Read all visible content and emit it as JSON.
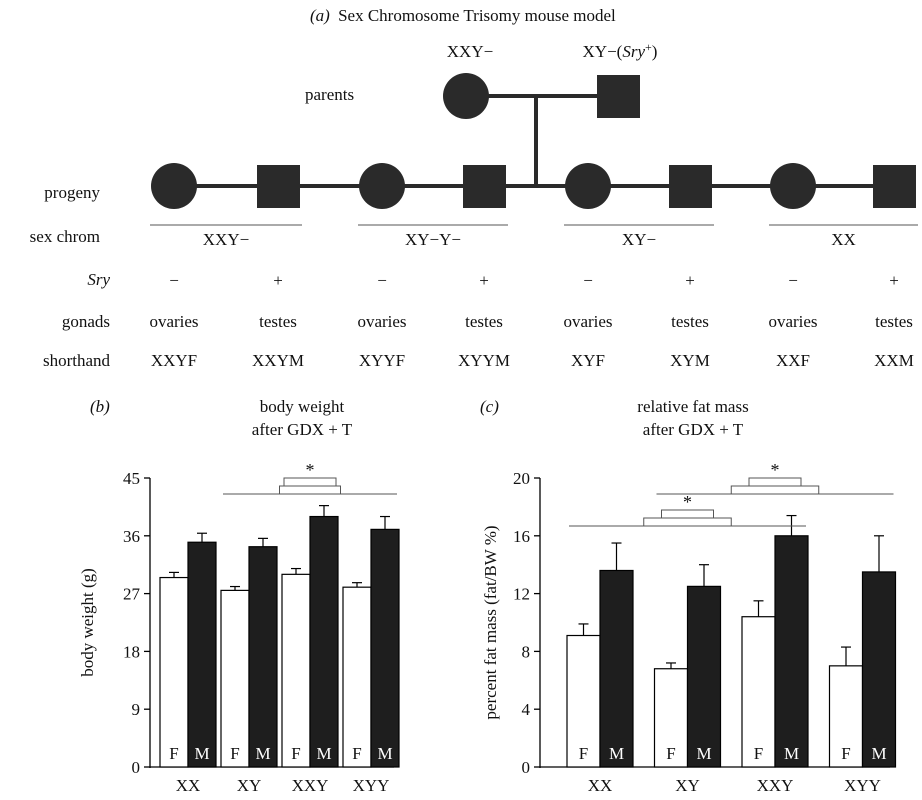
{
  "panel_a": {
    "title_letter": "(a)",
    "title": "Sex Chromosome Trisomy mouse model",
    "parent_female_label": "XXY−",
    "parent_male_label_base": "XY−(",
    "parent_male_label_gene": "Sry",
    "parent_male_label_sup": "+",
    "parent_male_label_end": ")",
    "parents_label": "parents",
    "row_labels": {
      "progeny": "progeny",
      "sex_chrom": "sex chrom",
      "sry": "Sry",
      "gonads": "gonads",
      "shorthand": "shorthand"
    },
    "groups": [
      {
        "sex_chrom": "XXY−",
        "offspring": [
          {
            "sry": "−",
            "gonads": "ovaries",
            "shorthand": "XXYF",
            "sex": "female"
          },
          {
            "sry": "+",
            "gonads": "testes",
            "shorthand": "XXYM",
            "sex": "male"
          }
        ]
      },
      {
        "sex_chrom": "XY−Y−",
        "offspring": [
          {
            "sry": "−",
            "gonads": "ovaries",
            "shorthand": "XYYF",
            "sex": "female"
          },
          {
            "sry": "+",
            "gonads": "testes",
            "shorthand": "XYYM",
            "sex": "male"
          }
        ]
      },
      {
        "sex_chrom": "XY−",
        "offspring": [
          {
            "sry": "−",
            "gonads": "ovaries",
            "shorthand": "XYF",
            "sex": "female"
          },
          {
            "sry": "+",
            "gonads": "testes",
            "shorthand": "XYM",
            "sex": "male"
          }
        ]
      },
      {
        "sex_chrom": "XX",
        "offspring": [
          {
            "sry": "−",
            "gonads": "ovaries",
            "shorthand": "XXF",
            "sex": "female"
          },
          {
            "sry": "+",
            "gonads": "testes",
            "shorthand": "XXM",
            "sex": "male"
          }
        ]
      }
    ]
  },
  "colors": {
    "ink": "#2a2a2a",
    "female_bar": "#ffffff",
    "male_bar": "#1e1e1e"
  },
  "chart_data": [
    {
      "panel": "(b)",
      "type": "bar",
      "title_lines": [
        "body weight",
        "after GDX + T"
      ],
      "ylabel": "body weight (g)",
      "ylim": [
        0,
        45
      ],
      "yticks": [
        0,
        9,
        18,
        27,
        36,
        45
      ],
      "categories": [
        "XX",
        "XY",
        "XXY",
        "XYY"
      ],
      "series": [
        {
          "name": "F",
          "values": [
            29.5,
            27.5,
            30.0,
            28.0
          ],
          "errors": [
            0.8,
            0.6,
            0.9,
            0.7
          ]
        },
        {
          "name": "M",
          "values": [
            35.0,
            34.3,
            39.0,
            37.0
          ],
          "errors": [
            1.4,
            1.3,
            1.7,
            2.0
          ]
        }
      ],
      "annotations": [
        {
          "text": "*",
          "groups": [
            [
              1,
              2
            ],
            [
              2,
              3
            ]
          ]
        }
      ]
    },
    {
      "panel": "(c)",
      "type": "bar",
      "title_lines": [
        "relative fat mass",
        "after GDX + T"
      ],
      "ylabel": "percent fat mass (fat/BW %)",
      "ylim": [
        0,
        20
      ],
      "yticks": [
        0,
        4,
        8,
        12,
        16,
        20
      ],
      "categories": [
        "XX",
        "XY",
        "XXY",
        "XYY"
      ],
      "series": [
        {
          "name": "F",
          "values": [
            9.1,
            6.8,
            10.4,
            7.0
          ],
          "errors": [
            0.8,
            0.4,
            1.1,
            1.3
          ]
        },
        {
          "name": "M",
          "values": [
            13.6,
            12.5,
            16.0,
            13.5
          ],
          "errors": [
            1.9,
            1.5,
            1.4,
            2.5
          ]
        }
      ],
      "annotations": [
        {
          "text": "*",
          "groups": [
            [
              0,
              1
            ],
            [
              1,
              2
            ]
          ]
        },
        {
          "text": "*",
          "groups": [
            [
              1,
              2
            ],
            [
              2,
              3
            ]
          ]
        }
      ]
    }
  ]
}
